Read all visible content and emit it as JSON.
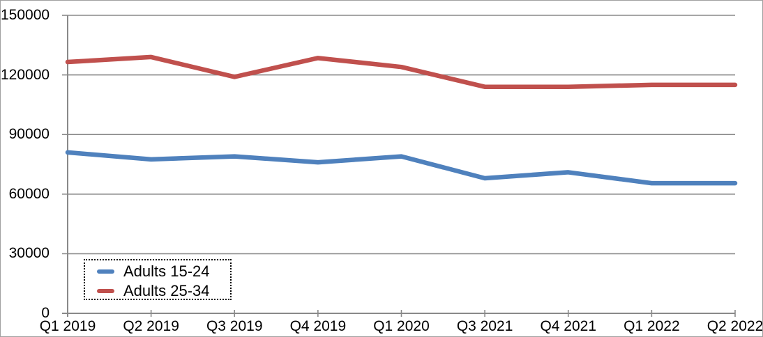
{
  "chart_data": {
    "type": "line",
    "title": "",
    "xlabel": "",
    "ylabel": "",
    "categories": [
      "Q1 2019",
      "Q2 2019",
      "Q3 2019",
      "Q4 2019",
      "Q1 2020",
      "Q3 2021",
      "Q4 2021",
      "Q1 2022",
      "Q2 2022"
    ],
    "series": [
      {
        "name": "Adults 15-24",
        "color": "#4F81BD",
        "values": [
          81000,
          77500,
          79000,
          76000,
          79000,
          68000,
          71000,
          65500,
          65500
        ]
      },
      {
        "name": "Adults 25-34",
        "color": "#C0504D",
        "values": [
          126500,
          129000,
          119000,
          128500,
          124000,
          114000,
          114000,
          115000,
          115000
        ]
      }
    ],
    "ylim": [
      0,
      150000
    ],
    "y_ticks": [
      0,
      30000,
      60000,
      90000,
      120000,
      150000
    ],
    "y_tick_labels": [
      "0",
      "30000",
      "60000",
      "90000",
      "120000",
      "150000"
    ],
    "grid": true,
    "legend_position": "bottom-left",
    "legend_border": "dotted",
    "axis_color": "#898989",
    "text_color": "#000000",
    "background_color": "#FFFFFF"
  }
}
